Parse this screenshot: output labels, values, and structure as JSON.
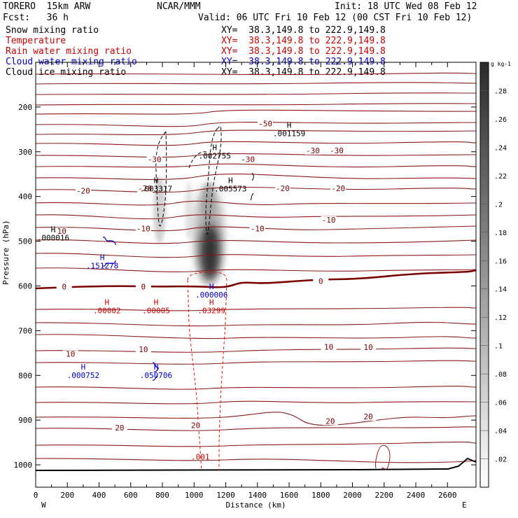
{
  "header": {
    "model": "TORERO  15km ARW",
    "center": "NCAR/MMM",
    "init": "Init: 18 UTC Wed 08 Feb 12",
    "fcst": "Fcst:   36 h",
    "valid": "Valid: 06 UTC Fri 10 Feb 12 (00 CST Fri 10 Feb 12)"
  },
  "fields": [
    {
      "name": "Snow mixing ratio",
      "xy": "XY=  38.3,149.8 to 222.9,149.8",
      "color": "#000000"
    },
    {
      "name": "Temperature",
      "xy": "XY=  38.3,149.8 to 222.9,149.8",
      "color": "#cc0000"
    },
    {
      "name": "Rain water mixing ratio",
      "xy": "XY=  38.3,149.8 to 222.9,149.8",
      "color": "#cc0000"
    },
    {
      "name": "Cloud water mixing ratio",
      "xy": "XY=  38.3,149.8 to 222.9,149.8",
      "color": "#0000cc"
    },
    {
      "name": "Cloud ice mixing ratio",
      "xy": "XY=  38.3,149.8 to 222.9,149.8",
      "color": "#000000"
    }
  ],
  "chart_data": {
    "type": "contour-cross-section",
    "xlabel": "Distance (km)",
    "ylabel": "Pressure (hPa)",
    "xlim": [
      0,
      2780
    ],
    "ylim": [
      1050,
      100
    ],
    "x_ticks": [
      0,
      100,
      200,
      300,
      400,
      500,
      600,
      700,
      800,
      900,
      1000,
      1100,
      1200,
      1300,
      1400,
      1500,
      1600,
      1700,
      1800,
      1900,
      2000,
      2100,
      2200,
      2300,
      2400,
      2500,
      2600
    ],
    "x_tick_labels": [
      "0",
      "200",
      "400",
      "600",
      "800",
      "1000",
      "1200",
      "1400",
      "1600",
      "1800",
      "2000",
      "2200",
      "2400",
      "2600"
    ],
    "y_ticks": [
      200,
      300,
      400,
      500,
      600,
      700,
      800,
      900,
      1000
    ],
    "endpoints": {
      "left": "W",
      "right": "E"
    },
    "colorbar": {
      "unit": "g kg-1",
      "labels": [
        ".02",
        ".04",
        ".06",
        ".08",
        ".1",
        ".12",
        ".14",
        ".16",
        ".18",
        ".2",
        ".22",
        ".24",
        ".26",
        ".28"
      ]
    },
    "temperature_isotherms": [
      {
        "value": -50,
        "label": "-50",
        "label_at": [
          {
            "x": 1450,
            "p": 240
          }
        ]
      },
      {
        "value": -30,
        "label": "-30",
        "label_at": [
          {
            "x": 750,
            "p": 320
          },
          {
            "x": 1340,
            "p": 320
          },
          {
            "x": 1750,
            "p": 300
          },
          {
            "x": 1900,
            "p": 300
          }
        ]
      },
      {
        "value": -20,
        "label": "-20",
        "label_at": [
          {
            "x": 300,
            "p": 390
          },
          {
            "x": 690,
            "p": 385
          },
          {
            "x": 1560,
            "p": 385
          },
          {
            "x": 1910,
            "p": 385
          }
        ]
      },
      {
        "value": -10,
        "label": "-10",
        "label_at": [
          {
            "x": 150,
            "p": 480
          },
          {
            "x": 680,
            "p": 475
          },
          {
            "x": 1400,
            "p": 475
          },
          {
            "x": 1850,
            "p": 455
          }
        ]
      },
      {
        "value": 0,
        "label": "0",
        "label_at": [
          {
            "x": 180,
            "p": 605
          },
          {
            "x": 680,
            "p": 605
          },
          {
            "x": 1800,
            "p": 592
          }
        ]
      },
      {
        "value": 10,
        "label": "10",
        "label_at": [
          {
            "x": 220,
            "p": 755
          },
          {
            "x": 680,
            "p": 745
          },
          {
            "x": 1850,
            "p": 739
          },
          {
            "x": 2100,
            "p": 740
          }
        ]
      },
      {
        "value": 20,
        "label": "20",
        "label_at": [
          {
            "x": 530,
            "p": 920
          },
          {
            "x": 1010,
            "p": 915
          },
          {
            "x": 1860,
            "p": 905
          },
          {
            "x": 2100,
            "p": 895
          }
        ]
      }
    ],
    "extrema": [
      {
        "field": "Cloud ice mixing ratio",
        "label": "H",
        "value": ".001159",
        "x": 1600,
        "p": 262
      },
      {
        "field": "Cloud ice mixing ratio",
        "label": "H",
        "value": ".002755",
        "x": 1130,
        "p": 312
      },
      {
        "field": "Cloud ice mixing ratio",
        "label": "H",
        "value": ".003317",
        "x": 760,
        "p": 386
      },
      {
        "field": "Cloud ice mixing ratio",
        "label": "H",
        "value": ".005573",
        "x": 1230,
        "p": 386
      },
      {
        "field": "Cloud ice mixing ratio",
        "label": "H",
        "value": ".000016",
        "x": 110,
        "p": 495
      },
      {
        "field": "Cloud water mixing ratio",
        "label": "H",
        "value": ".151278",
        "x": 420,
        "p": 558
      },
      {
        "field": "Cloud water mixing ratio",
        "label": "H",
        "value": ".000006",
        "x": 1110,
        "p": 623
      },
      {
        "field": "Cloud water mixing ratio",
        "label": "H",
        "value": ".000752",
        "x": 300,
        "p": 803
      },
      {
        "field": "Cloud water mixing ratio",
        "label": "H",
        "value": ".050706",
        "x": 760,
        "p": 803
      },
      {
        "field": "Rain water mixing ratio",
        "label": "H",
        "value": ".00002",
        "x": 450,
        "p": 658
      },
      {
        "field": "Rain water mixing ratio",
        "label": "H",
        "value": ".00005",
        "x": 760,
        "p": 658
      },
      {
        "field": "Rain water mixing ratio",
        "label": "H",
        "value": ".03299",
        "x": 1110,
        "p": 658
      },
      {
        "field": "Rain water mixing ratio",
        "label": "",
        "value": ".001",
        "x": 1040,
        "p": 985
      }
    ]
  }
}
